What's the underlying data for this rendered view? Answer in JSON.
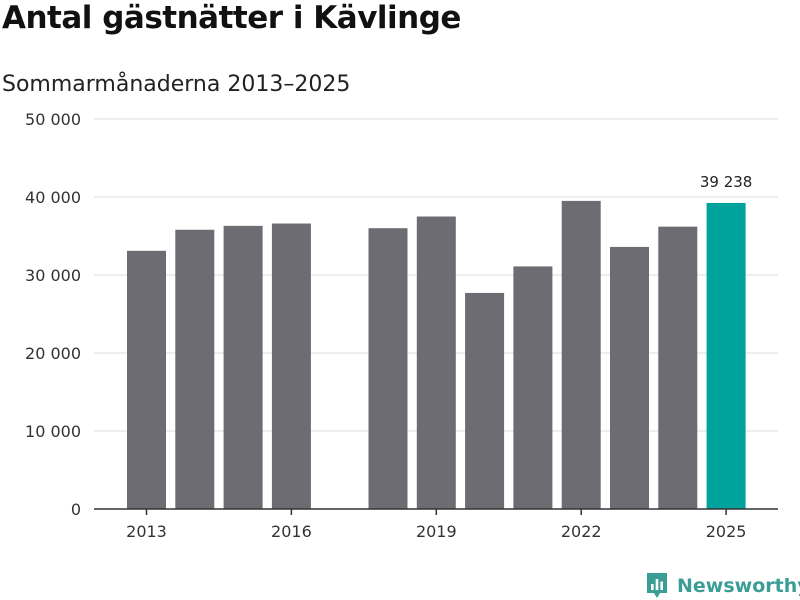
{
  "header": {
    "title": "Antal gästnätter i Kävlinge",
    "subtitle": "Sommarmånaderna 2013–2025"
  },
  "brand": {
    "name": "Newsworthy",
    "logo_icon": "newsworthy-logo-icon",
    "color": "#3a9e96"
  },
  "colors": {
    "bar": "#6d6c72",
    "highlight": "#00a39b",
    "grid": "#dddddd",
    "axis": "#333333"
  },
  "chart_data": {
    "type": "bar",
    "title": "Antal gästnätter i Kävlinge",
    "subtitle": "Sommarmånaderna 2013–2025",
    "xlabel": "",
    "ylabel": "",
    "x": [
      2013,
      2014,
      2015,
      2016,
      2017,
      2018,
      2019,
      2020,
      2021,
      2022,
      2023,
      2024,
      2025
    ],
    "values": [
      33100,
      35800,
      36300,
      36600,
      null,
      36000,
      37500,
      27700,
      31100,
      39500,
      33600,
      36200,
      39238
    ],
    "highlight_index": 12,
    "ylim": [
      0,
      50000
    ],
    "yticks": [
      0,
      10000,
      20000,
      30000,
      40000,
      50000
    ],
    "ytick_labels": [
      "0",
      "10 000",
      "20 000",
      "30 000",
      "40 000",
      "50 000"
    ],
    "xticks": [
      2013,
      2016,
      2019,
      2022,
      2025
    ],
    "xtick_labels": [
      "2013",
      "2016",
      "2019",
      "2022",
      "2025"
    ],
    "annotations": [
      {
        "x": 2025,
        "label": "39 238"
      }
    ],
    "grid": true,
    "legend": "none"
  }
}
